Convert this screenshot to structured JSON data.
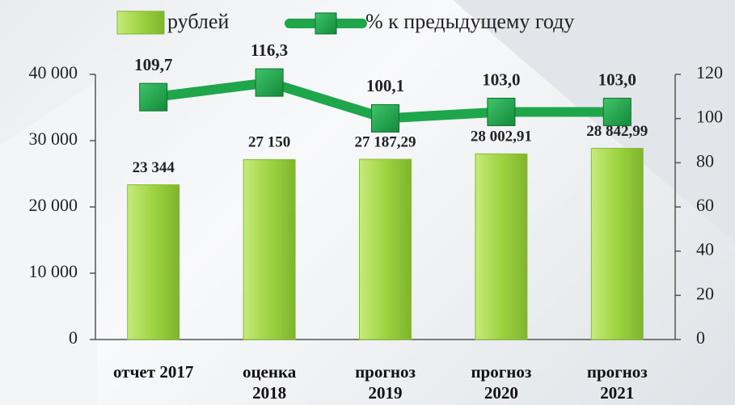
{
  "chart_data": {
    "type": "bar",
    "categories": [
      "отчет 2017",
      "оценка 2018",
      "прогноз 2019",
      "прогноз 2020",
      "прогноз 2021"
    ],
    "series": [
      {
        "name": "рублей",
        "type": "bar",
        "color": "#9ed341",
        "values": [
          23344,
          27150,
          27187.29,
          28002.91,
          28842.99
        ],
        "value_labels": [
          "23 344",
          "27 150",
          "27 187,29",
          "28 002,91",
          "28 842,99"
        ]
      },
      {
        "name": "% к предыдущему году",
        "type": "line",
        "axis": "y2",
        "color": "#1fa64a",
        "values": [
          109.7,
          116.3,
          100.1,
          103.0,
          103.0
        ],
        "value_labels": [
          "109,7",
          "116,3",
          "100,1",
          "103,0",
          "103,0"
        ]
      }
    ],
    "ylim": [
      0,
      40000
    ],
    "yticks": [
      0,
      {
        "value": 10000,
        "label": "10 000"
      },
      {
        "value": 20000,
        "label": "20 000"
      },
      {
        "value": 30000,
        "label": "30 000"
      },
      {
        "value": 40000,
        "label": "40 000"
      }
    ],
    "y2lim": [
      0,
      120
    ],
    "y2ticks": [
      0,
      20,
      40,
      60,
      80,
      100,
      120
    ],
    "legend": "top"
  }
}
